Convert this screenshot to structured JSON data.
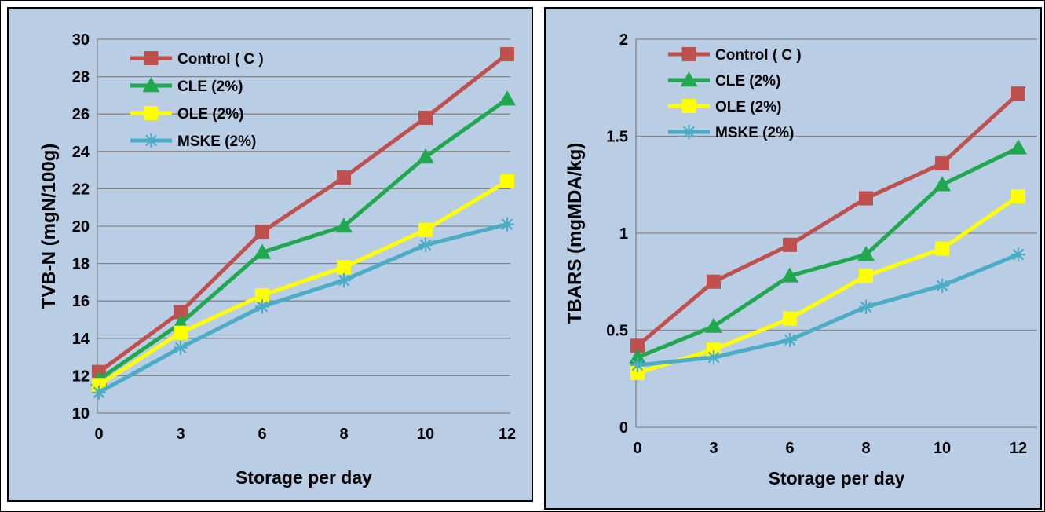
{
  "colors": {
    "plot_bg": "#b9cde5",
    "gridline": "#868686",
    "frame": "#000000",
    "text": "#000000"
  },
  "chart_data": [
    {
      "type": "line",
      "title": "",
      "xlabel": "Storage per day",
      "ylabel": "TVB-N (mgN/100g)",
      "categories": [
        "0",
        "3",
        "6",
        "8",
        "10",
        "12"
      ],
      "ylim": [
        10,
        30
      ],
      "yticks": [
        "10",
        "12",
        "14",
        "16",
        "18",
        "20",
        "22",
        "24",
        "26",
        "28",
        "30"
      ],
      "grid": true,
      "legend_position": "top-left",
      "series": [
        {
          "name": "Control ( C )",
          "color": "#c0504d",
          "marker": "square",
          "values": [
            12.2,
            15.4,
            19.7,
            22.6,
            25.8,
            29.2
          ]
        },
        {
          "name": "CLE (2%)",
          "color": "#1fa84e",
          "marker": "triangle",
          "values": [
            11.8,
            14.8,
            18.6,
            20.0,
            23.7,
            26.8
          ]
        },
        {
          "name": "OLE (2%)",
          "color": "#ffff00",
          "marker": "square",
          "values": [
            11.5,
            14.3,
            16.3,
            17.8,
            19.8,
            22.4
          ]
        },
        {
          "name": "MSKE (2%)",
          "color": "#4bacc6",
          "marker": "star",
          "values": [
            11.1,
            13.5,
            15.7,
            17.1,
            19.0,
            20.1
          ]
        }
      ]
    },
    {
      "type": "line",
      "title": "",
      "xlabel": "Storage per day",
      "ylabel": "TBARS (mgMDA/kg)",
      "categories": [
        "0",
        "3",
        "6",
        "8",
        "10",
        "12"
      ],
      "ylim": [
        0,
        2
      ],
      "yticks": [
        "0",
        "0.5",
        "1",
        "1.5",
        "2"
      ],
      "grid": true,
      "legend_position": "top-left",
      "series": [
        {
          "name": "Control ( C )",
          "color": "#c0504d",
          "marker": "square",
          "values": [
            0.42,
            0.75,
            0.94,
            1.18,
            1.36,
            1.72
          ]
        },
        {
          "name": "CLE (2%)",
          "color": "#1fa84e",
          "marker": "triangle",
          "values": [
            0.36,
            0.52,
            0.78,
            0.89,
            1.25,
            1.44
          ]
        },
        {
          "name": "OLE (2%)",
          "color": "#ffff00",
          "marker": "square",
          "values": [
            0.28,
            0.4,
            0.56,
            0.78,
            0.92,
            1.19
          ]
        },
        {
          "name": "MSKE (2%)",
          "color": "#4bacc6",
          "marker": "star",
          "values": [
            0.32,
            0.36,
            0.45,
            0.62,
            0.73,
            0.89
          ]
        }
      ]
    }
  ]
}
